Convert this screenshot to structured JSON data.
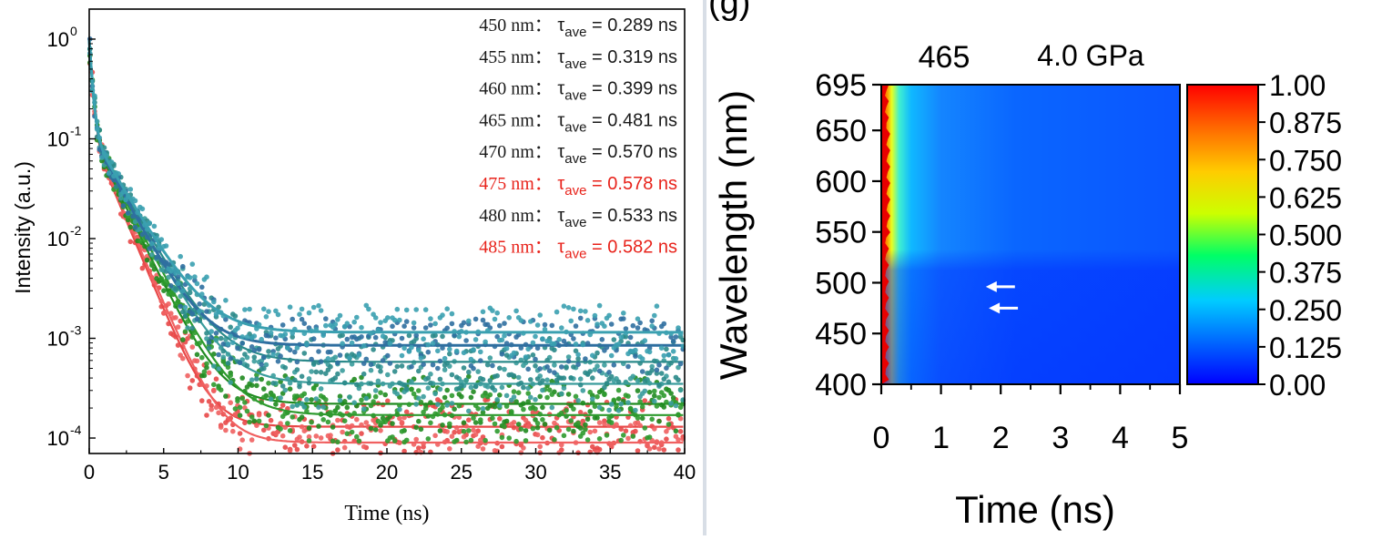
{
  "chart_data": [
    {
      "type": "scatter",
      "xlabel": "Time (ns)",
      "ylabel": "Intensity (a.u.)",
      "xlim": [
        0,
        40
      ],
      "ylim": [
        7e-05,
        2
      ],
      "y_scale": "log",
      "x_ticks": [
        "0",
        "5",
        "10",
        "15",
        "20",
        "25",
        "30",
        "35",
        "40"
      ],
      "y_ticks": [
        {
          "value": 1,
          "label": "10",
          "exp": "0"
        },
        {
          "value": 0.1,
          "label": "10",
          "exp": "-1"
        },
        {
          "value": 0.01,
          "label": "10",
          "exp": "-2"
        },
        {
          "value": 0.001,
          "label": "10",
          "exp": "-3"
        },
        {
          "value": 0.0001,
          "label": "10",
          "exp": "-4"
        }
      ],
      "legend_placement": "top-right",
      "tau_symbol": "τ",
      "tau_subscript": "ave",
      "series": [
        {
          "name": "450 nm",
          "tau_text": " = 0.289 ns",
          "tau": 0.289,
          "text_color": "#1a1a1a",
          "color": "#e84848",
          "tau_fit": 1.2,
          "baseline": 0.00013
        },
        {
          "name": "455 nm",
          "tau_text": " = 0.319 ns",
          "tau": 0.319,
          "text_color": "#1a1a1a",
          "color": "#f06060",
          "tau_fit": 1.25,
          "baseline": 9e-05
        },
        {
          "name": "460 nm",
          "tau_text": " = 0.399 ns",
          "tau": 0.399,
          "text_color": "#1a1a1a",
          "color": "#1f8a1f",
          "tau_fit": 1.4,
          "baseline": 0.00022
        },
        {
          "name": "465 nm",
          "tau_text": " = 0.481 ns",
          "tau": 0.481,
          "text_color": "#1a1a1a",
          "color": "#2e9a2e",
          "tau_fit": 1.5,
          "baseline": 0.00017
        },
        {
          "name": "470 nm",
          "tau_text": " = 0.570 ns",
          "tau": 0.57,
          "text_color": "#1a1a1a",
          "color": "#3a9c9c",
          "tau_fit": 1.6,
          "baseline": 0.00035
        },
        {
          "name": "475 nm",
          "tau_text": " = 0.578 ns",
          "tau": 0.578,
          "text_color": "#e8231b",
          "color": "#2b8a8a",
          "tau_fit": 1.65,
          "baseline": 0.00058
        },
        {
          "name": "480 nm",
          "tau_text": " = 0.533 ns",
          "tau": 0.533,
          "text_color": "#1a1a1a",
          "color": "#2f6fa0",
          "tau_fit": 1.55,
          "baseline": 0.00085
        },
        {
          "name": "485 nm",
          "tau_text": " = 0.582 ns",
          "tau": 0.582,
          "text_color": "#e8231b",
          "color": "#3aa0b0",
          "tau_fit": 1.7,
          "baseline": 0.00115
        }
      ]
    },
    {
      "type": "heatmap",
      "panel_label": "(g)",
      "title_left": "465",
      "title_right": "4.0 GPa",
      "xlabel": "Time (ns)",
      "ylabel": "Wavelength (nm)",
      "xlim": [
        0,
        5
      ],
      "ylim": [
        400,
        695
      ],
      "x_ticks": [
        "0",
        "1",
        "2",
        "3",
        "4",
        "5"
      ],
      "y_ticks": [
        "695",
        "650",
        "600",
        "550",
        "500",
        "450",
        "400"
      ],
      "colorbar_ticks": [
        "1.00",
        "0.875",
        "0.750",
        "0.625",
        "0.500",
        "0.375",
        "0.250",
        "0.125",
        "0.00"
      ],
      "colorbar_range": [
        0,
        1
      ],
      "colormap": [
        "#0000ff",
        "#0066ff",
        "#00ccff",
        "#00ff66",
        "#ccff00",
        "#ffcc00",
        "#ff6600",
        "#ff0000"
      ],
      "arrows": [
        {
          "t": 1.75,
          "wavelength": 496,
          "label": ""
        },
        {
          "t": 1.8,
          "wavelength": 475,
          "label": ""
        }
      ]
    }
  ]
}
